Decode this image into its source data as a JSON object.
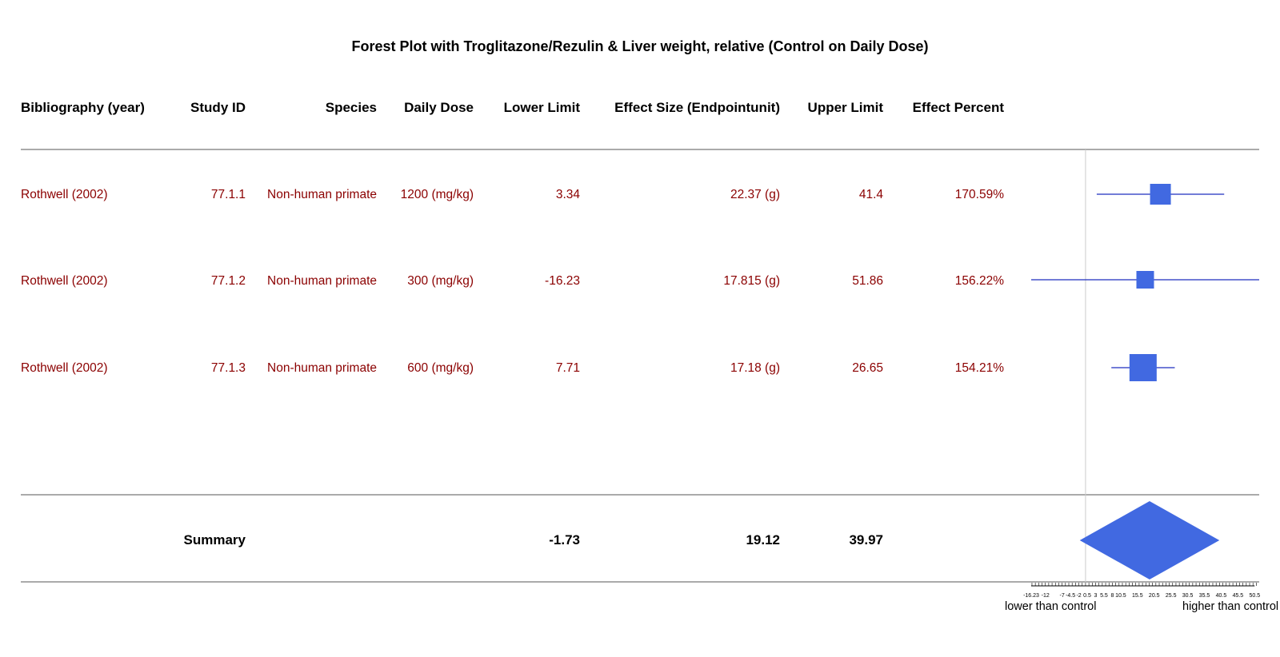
{
  "title": "Forest Plot with Troglitazone/Rezulin & Liver weight, relative (Control on Daily Dose)",
  "colors": {
    "marker": "#4169e1",
    "whisker": "#1f2fbf",
    "row_text": "#8b0000",
    "rule": "#555555",
    "zero_line": "#cccccc"
  },
  "columns": [
    "Bibliography (year)",
    "Study ID",
    "Species",
    "Daily Dose",
    "Lower Limit",
    "Effect Size (Endpointunit)",
    "Upper Limit",
    "Effect Percent"
  ],
  "rows": [
    {
      "bibliography": "Rothwell (2002)",
      "study_id": "77.1.1",
      "species": "Non-human primate",
      "daily_dose": "1200 (mg/kg)",
      "lower": "3.34",
      "effect": "22.37 (g)",
      "upper": "41.4",
      "percent": "170.59%"
    },
    {
      "bibliography": "Rothwell (2002)",
      "study_id": "77.1.2",
      "species": "Non-human primate",
      "daily_dose": "300 (mg/kg)",
      "lower": "-16.23",
      "effect": "17.815 (g)",
      "upper": "51.86",
      "percent": "156.22%"
    },
    {
      "bibliography": "Rothwell (2002)",
      "study_id": "77.1.3",
      "species": "Non-human primate",
      "daily_dose": "600 (mg/kg)",
      "lower": "7.71",
      "effect": "17.18 (g)",
      "upper": "26.65",
      "percent": "154.21%"
    }
  ],
  "summary": {
    "label": "Summary",
    "lower": "-1.73",
    "effect": "19.12",
    "upper": "39.97"
  },
  "axis": {
    "ticks": [
      "-16.23",
      "-12",
      "-7",
      "-4.5",
      "-2",
      "0.5",
      "3",
      "5.5",
      "8",
      "10.5",
      "15.5",
      "20.5",
      "25.5",
      "30.5",
      "35.5",
      "40.5",
      "45.5",
      "50.5"
    ],
    "lower_label": "lower than control",
    "higher_label": "higher than control"
  },
  "chart_data": {
    "type": "forest",
    "title": "Forest Plot with Troglitazone/Rezulin & Liver weight, relative (Control on Daily Dose)",
    "xlim": [
      -16.23,
      51.86
    ],
    "reference_line": 0,
    "studies": [
      {
        "label": "77.1.1",
        "lower": 3.34,
        "estimate": 22.37,
        "upper": 41.4,
        "relative_weight": 0.6
      },
      {
        "label": "77.1.2",
        "lower": -16.23,
        "estimate": 17.815,
        "upper": 51.86,
        "relative_weight": 0.4
      },
      {
        "label": "77.1.3",
        "lower": 7.71,
        "estimate": 17.18,
        "upper": 26.65,
        "relative_weight": 1.0
      }
    ],
    "summary": {
      "lower": -1.73,
      "estimate": 19.12,
      "upper": 39.97
    },
    "x_ticks": [
      -16.23,
      -12,
      -7,
      -4.5,
      -2,
      0.5,
      3,
      5.5,
      8,
      10.5,
      15.5,
      20.5,
      25.5,
      30.5,
      35.5,
      40.5,
      45.5,
      50.5
    ],
    "xlabel_left": "lower than control",
    "xlabel_right": "higher than control"
  }
}
